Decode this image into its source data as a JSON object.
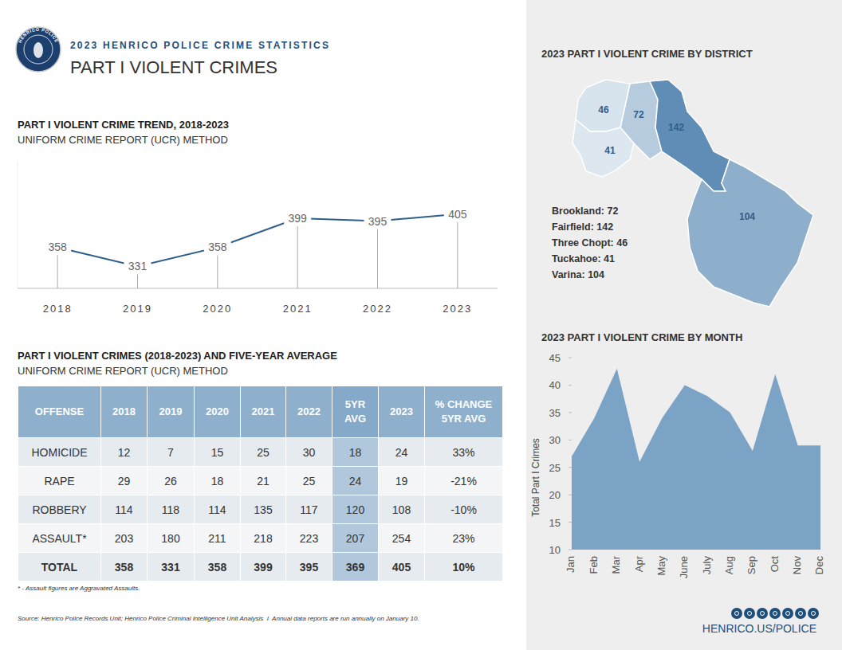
{
  "header": {
    "logo_text": "HENRICO POLICE",
    "kicker": "2023 HENRICO POLICE CRIME STATISTICS",
    "title": "PART I VIOLENT CRIMES"
  },
  "chart_data": [
    {
      "type": "line",
      "title": "PART I VIOLENT CRIME TREND, 2018-2023",
      "subtitle": "UNIFORM CRIME REPORT (UCR) METHOD",
      "categories": [
        "2018",
        "2019",
        "2020",
        "2021",
        "2022",
        "2023"
      ],
      "values": [
        358,
        331,
        358,
        399,
        395,
        405
      ],
      "color": "#2e5f8a",
      "ylim": [
        300,
        480
      ],
      "data_labels": true,
      "tick_labels": "x"
    },
    {
      "type": "area",
      "title": "2023 PART I VIOLENT CRIME BY MONTH",
      "ylabel": "Total Part I Crimes",
      "categories": [
        "Jan",
        "Feb",
        "Mar",
        "Apr",
        "May",
        "June",
        "July",
        "Aug",
        "Sep",
        "Oct",
        "Nov",
        "Dec"
      ],
      "values": [
        27,
        34,
        43,
        26,
        34,
        40,
        38,
        35,
        28,
        42,
        29,
        29
      ],
      "color": "#7ba3c5",
      "ylim": [
        10,
        45
      ],
      "yticks": [
        10,
        15,
        20,
        25,
        30,
        35,
        40,
        45
      ],
      "grid": false
    }
  ],
  "map": {
    "title": "2023 PART I VIOLENT CRIME BY DISTRICT",
    "separator": ": ",
    "districts": [
      {
        "name": "Brookland",
        "value": 72
      },
      {
        "name": "Fairfield",
        "value": 142
      },
      {
        "name": "Three Chopt",
        "value": 46
      },
      {
        "name": "Tuckahoe",
        "value": 41
      },
      {
        "name": "Varina",
        "value": 104
      }
    ]
  },
  "table": {
    "title": "PART I VIOLENT CRIMES (2018-2023) AND FIVE-YEAR AVERAGE",
    "subtitle": "UNIFORM CRIME REPORT (UCR) METHOD",
    "columns": [
      "OFFENSE",
      "2018",
      "2019",
      "2020",
      "2021",
      "2022",
      "5YR AVG",
      "2023",
      "% CHANGE 5YR AVG"
    ],
    "rows": [
      [
        "HOMICIDE",
        12,
        7,
        15,
        25,
        30,
        18,
        24,
        "33%"
      ],
      [
        "RAPE",
        29,
        26,
        18,
        21,
        25,
        24,
        19,
        "-21%"
      ],
      [
        "ROBBERY",
        114,
        118,
        114,
        135,
        117,
        120,
        108,
        "-10%"
      ],
      [
        "ASSAULT*",
        203,
        180,
        211,
        218,
        223,
        207,
        254,
        "23%"
      ],
      [
        "TOTAL",
        358,
        331,
        358,
        399,
        395,
        369,
        405,
        "10%"
      ]
    ]
  },
  "footnote": "* - Assault figures are Aggravated Assaults.",
  "source": "Source: Henrico Police Records Unit; Henrico Police Criminal Intelligence Unit Analysis  I  Annual data reports are run annually on January 10.",
  "footer": {
    "url": "HENRICO.US/POLICE"
  }
}
